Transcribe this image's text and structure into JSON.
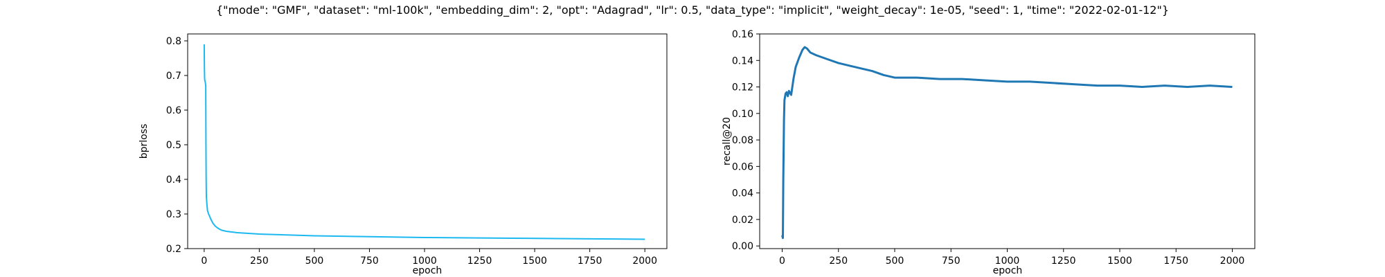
{
  "figure_title": "{\"mode\": \"GMF\", \"dataset\": \"ml-100k\", \"embedding_dim\": 2, \"opt\": \"Adagrad\", \"lr\": 0.5, \"data_type\": \"implicit\", \"weight_decay\": 1e-05, \"seed\": 1, \"time\": \"2022-02-01-12\"}",
  "chart_data": [
    {
      "type": "line",
      "xlabel": "epoch",
      "ylabel": "bprloss",
      "xlim": [
        -75,
        2100
      ],
      "ylim": [
        0.2,
        0.82
      ],
      "xticks": [
        0,
        250,
        500,
        750,
        1000,
        1250,
        1500,
        1750,
        2000
      ],
      "yticks": [
        0.2,
        0.3,
        0.4,
        0.5,
        0.6,
        0.7,
        0.8
      ],
      "grid": false,
      "color": "#1cb8f0",
      "series": [
        {
          "x": [
            0,
            1,
            2,
            3,
            5,
            7,
            8,
            9,
            10,
            12,
            15,
            20,
            25,
            30,
            40,
            50,
            60,
            70,
            80,
            100,
            125,
            150,
            200,
            250,
            300,
            400,
            500,
            600,
            700,
            800,
            900,
            1000,
            1200,
            1400,
            1600,
            1800,
            2000
          ],
          "y": [
            0.79,
            0.72,
            0.69,
            0.685,
            0.68,
            0.67,
            0.5,
            0.4,
            0.35,
            0.33,
            0.31,
            0.3,
            0.293,
            0.285,
            0.273,
            0.265,
            0.26,
            0.256,
            0.253,
            0.25,
            0.248,
            0.246,
            0.244,
            0.242,
            0.241,
            0.239,
            0.237,
            0.236,
            0.235,
            0.234,
            0.233,
            0.232,
            0.231,
            0.23,
            0.229,
            0.228,
            0.227
          ]
        }
      ]
    },
    {
      "type": "line",
      "xlabel": "epoch",
      "ylabel": "recall@20",
      "xlim": [
        -100,
        2100
      ],
      "ylim": [
        -0.002,
        0.16
      ],
      "xticks": [
        0,
        250,
        500,
        750,
        1000,
        1250,
        1500,
        1750,
        2000
      ],
      "yticks": [
        0.0,
        0.02,
        0.04,
        0.06,
        0.08,
        0.1,
        0.12,
        0.14,
        0.16
      ],
      "grid": false,
      "color": "#1f77b4",
      "series": [
        {
          "x": [
            0,
            3,
            5,
            8,
            10,
            15,
            20,
            25,
            30,
            40,
            50,
            60,
            75,
            90,
            100,
            110,
            125,
            150,
            200,
            250,
            300,
            350,
            400,
            450,
            500,
            600,
            700,
            800,
            900,
            1000,
            1100,
            1200,
            1300,
            1400,
            1500,
            1600,
            1700,
            1800,
            1900,
            2000
          ],
          "y": [
            0.008,
            0.006,
            0.05,
            0.095,
            0.11,
            0.115,
            0.116,
            0.113,
            0.117,
            0.114,
            0.126,
            0.135,
            0.142,
            0.148,
            0.15,
            0.149,
            0.146,
            0.144,
            0.141,
            0.138,
            0.136,
            0.134,
            0.132,
            0.129,
            0.127,
            0.127,
            0.126,
            0.126,
            0.125,
            0.124,
            0.124,
            0.123,
            0.122,
            0.121,
            0.121,
            0.12,
            0.121,
            0.12,
            0.121,
            0.12
          ]
        }
      ]
    }
  ]
}
